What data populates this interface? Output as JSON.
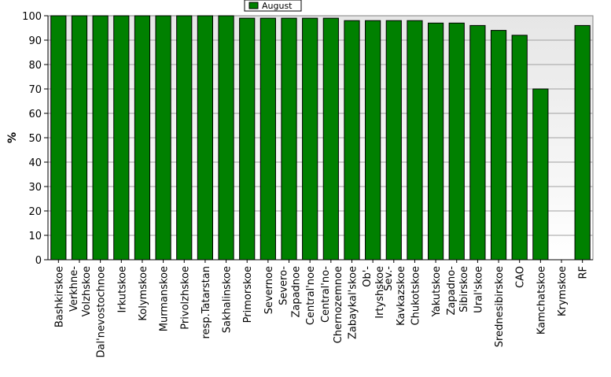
{
  "chart_data": {
    "type": "bar",
    "title": "",
    "xlabel": "",
    "ylabel": "%",
    "ylim": [
      0,
      100
    ],
    "yticks": [
      0,
      10,
      20,
      30,
      40,
      50,
      60,
      70,
      80,
      90,
      100
    ],
    "grid": true,
    "legend_position": "top-center",
    "categories": [
      [
        "Bashkirskoe"
      ],
      [
        "Verkhne-",
        "Volzhskoe"
      ],
      [
        "Dal'nevostochnoe"
      ],
      [
        "Irkutskoe"
      ],
      [
        "Kolymskoe"
      ],
      [
        "Murmanskoe"
      ],
      [
        "Privolzhskoe"
      ],
      [
        "resp.Tatarstan"
      ],
      [
        "Sakhalinskoe"
      ],
      [
        "Primorskoe"
      ],
      [
        "Severnoe"
      ],
      [
        "Severo-",
        "Zapadnoe"
      ],
      [
        "Central'noe"
      ],
      [
        "Central'no-",
        "Chernozemnoe"
      ],
      [
        "Zabaykal'skoe"
      ],
      [
        "Ob'-",
        "Irtyshskoe"
      ],
      [
        "Sev.-",
        "Kavkazskoe"
      ],
      [
        "Chukotskoe"
      ],
      [
        "Yakutskoe"
      ],
      [
        "Zapadno-",
        "Sibirskoe"
      ],
      [
        "Ural'skoe"
      ],
      [
        "Srednesibirskoe"
      ],
      [
        "CAO"
      ],
      [
        "Kamchatskoe"
      ],
      [
        "Krymskoe"
      ],
      [
        "RF"
      ]
    ],
    "series": [
      {
        "name": "August",
        "color": "#008000",
        "values": [
          100,
          100,
          100,
          100,
          100,
          100,
          100,
          100,
          100,
          99,
          99,
          99,
          99,
          99,
          98,
          98,
          98,
          98,
          97,
          97,
          96,
          94,
          92,
          70,
          0,
          96
        ]
      }
    ]
  }
}
